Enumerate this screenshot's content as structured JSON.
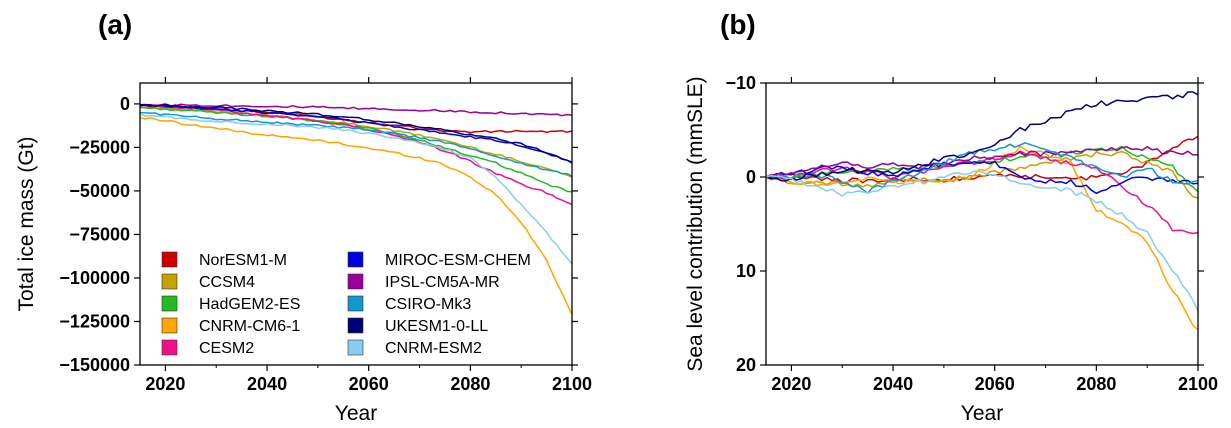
{
  "chart_data": [
    {
      "type": "line",
      "panel_label": "(a)",
      "xlabel": "Year",
      "ylabel": "Total ice mass (Gt)",
      "xlim": [
        2015,
        2100
      ],
      "ylim": [
        -150000,
        12000
      ],
      "y_inverted": false,
      "x_ticks": [
        2020,
        2040,
        2060,
        2080,
        2100
      ],
      "x_tick_labels": [
        "2020",
        "2040",
        "2060",
        "2080",
        "2100"
      ],
      "y_ticks": [
        0,
        -25000,
        -50000,
        -75000,
        -100000,
        -125000,
        -150000
      ],
      "y_tick_labels": [
        "0",
        "−25000",
        "−50000",
        "−75000",
        "−100000",
        "−125000",
        "−150000"
      ],
      "grid": false,
      "legend_position": "bottom-left",
      "x": [
        2015,
        2020,
        2025,
        2030,
        2035,
        2040,
        2045,
        2050,
        2055,
        2060,
        2065,
        2070,
        2075,
        2080,
        2085,
        2090,
        2095,
        2100
      ],
      "series": [
        {
          "name": "NorESM1-M",
          "color": "#cc0000",
          "values": [
            -1000,
            -1500,
            -2000,
            -3000,
            -4000,
            -5000,
            -6000,
            -7500,
            -9000,
            -10500,
            -12000,
            -14000,
            -15500,
            -16000,
            -16000,
            -15500,
            -16000,
            -16000
          ]
        },
        {
          "name": "CCSM4",
          "color": "#c8a000",
          "values": [
            -2000,
            -2500,
            -3500,
            -4500,
            -5500,
            -6500,
            -8000,
            -9500,
            -11000,
            -13000,
            -15500,
            -18000,
            -21000,
            -25000,
            -29000,
            -33000,
            -37000,
            -42000
          ]
        },
        {
          "name": "HadGEM2-ES",
          "color": "#22bb22",
          "values": [
            -2000,
            -3000,
            -4000,
            -5000,
            -6000,
            -7000,
            -8500,
            -10000,
            -12000,
            -14000,
            -17000,
            -21000,
            -25000,
            -30000,
            -34000,
            -40000,
            -46000,
            -51000
          ]
        },
        {
          "name": "CNRM-CM6-1",
          "color": "#ffa500",
          "values": [
            -8000,
            -9500,
            -12000,
            -14000,
            -16000,
            -18000,
            -19500,
            -21000,
            -23000,
            -25500,
            -28000,
            -31000,
            -35000,
            -42000,
            -52000,
            -68000,
            -90000,
            -121000
          ]
        },
        {
          "name": "CESM2",
          "color": "#ee1188",
          "values": [
            -500,
            -1500,
            -2500,
            -3500,
            -5000,
            -6500,
            -8000,
            -10000,
            -12000,
            -15000,
            -18000,
            -22000,
            -27000,
            -33000,
            -40000,
            -46000,
            -51000,
            -58000
          ]
        },
        {
          "name": "MIROC-ESM-CHEM",
          "color": "#0000dd",
          "values": [
            -1000,
            -1500,
            -2000,
            -3000,
            -4000,
            -5000,
            -6000,
            -7500,
            -9000,
            -11000,
            -13000,
            -15000,
            -17000,
            -19000,
            -21000,
            -24000,
            -28000,
            -33000
          ]
        },
        {
          "name": "IPSL-CM5A-MR",
          "color": "#990099",
          "values": [
            -500,
            -500,
            -700,
            -900,
            -1100,
            -1300,
            -1600,
            -2000,
            -2400,
            -2800,
            -3200,
            -3600,
            -4000,
            -4500,
            -5000,
            -5500,
            -6000,
            -6500
          ]
        },
        {
          "name": "CSIRO-Mk3",
          "color": "#1199cc",
          "values": [
            -5000,
            -6000,
            -7500,
            -8500,
            -9500,
            -10500,
            -11500,
            -12500,
            -13500,
            -15000,
            -17000,
            -19500,
            -22000,
            -26000,
            -30000,
            -34000,
            -38000,
            -41000
          ]
        },
        {
          "name": "UKESM1-0-LL",
          "color": "#000077",
          "values": [
            -500,
            -1000,
            -1500,
            -2000,
            -3000,
            -4000,
            -5000,
            -6000,
            -7500,
            -9000,
            -11000,
            -13000,
            -15000,
            -18000,
            -20000,
            -23000,
            -28000,
            -34000
          ]
        },
        {
          "name": "CNRM-ESM2",
          "color": "#88ccee",
          "values": [
            -6000,
            -7500,
            -9000,
            -10000,
            -11000,
            -11500,
            -12500,
            -13500,
            -15000,
            -17000,
            -19500,
            -22500,
            -26000,
            -31000,
            -42000,
            -58000,
            -74000,
            -92000
          ]
        }
      ]
    },
    {
      "type": "line",
      "panel_label": "(b)",
      "xlabel": "Year",
      "ylabel": "Sea level contribution (mmSLE)",
      "xlim": [
        2015,
        2100
      ],
      "ylim": [
        20,
        -10
      ],
      "y_inverted": true,
      "x_ticks": [
        2020,
        2040,
        2060,
        2080,
        2100
      ],
      "x_tick_labels": [
        "2020",
        "2040",
        "2060",
        "2080",
        "2100"
      ],
      "y_ticks": [
        -10,
        0,
        10,
        20
      ],
      "y_tick_labels": [
        "−10",
        "0",
        "10",
        "20"
      ],
      "grid": false,
      "x": [
        2015,
        2020,
        2025,
        2030,
        2035,
        2040,
        2045,
        2050,
        2055,
        2060,
        2065,
        2070,
        2075,
        2080,
        2085,
        2090,
        2095,
        2100
      ],
      "series": [
        {
          "name": "NorESM1-M",
          "color": "#cc0000",
          "values": [
            0,
            -0.2,
            0.2,
            0.3,
            0.5,
            0.2,
            0.2,
            0.3,
            0.0,
            -0.3,
            -0.2,
            0.1,
            0.2,
            0.0,
            -0.5,
            -1.5,
            -3.0,
            -4.5
          ]
        },
        {
          "name": "CCSM4",
          "color": "#c8a000",
          "values": [
            0,
            0.5,
            0.5,
            0.8,
            1.0,
            0.5,
            0.3,
            0.2,
            0.0,
            -0.5,
            -1.0,
            -1.5,
            -2.0,
            -2.5,
            -2.5,
            -1.5,
            -0.5,
            2.5
          ]
        },
        {
          "name": "HadGEM2-ES",
          "color": "#22bb22",
          "values": [
            0,
            0.0,
            -0.3,
            -0.5,
            -0.7,
            -0.8,
            -1.0,
            -1.2,
            -1.5,
            -1.8,
            -2.0,
            -2.3,
            -2.5,
            -2.8,
            -3.0,
            -2.0,
            -1.0,
            1.5
          ]
        },
        {
          "name": "CNRM-CM6-1",
          "color": "#ffa500",
          "values": [
            0,
            0.5,
            0.8,
            0.5,
            0.0,
            0.5,
            0.5,
            0.5,
            0.0,
            -1.5,
            -3.0,
            -2.5,
            -1.5,
            3.5,
            5.0,
            7.0,
            12.0,
            16.5
          ]
        },
        {
          "name": "CESM2",
          "color": "#ee1188",
          "values": [
            0,
            0.0,
            -0.5,
            -1.0,
            -0.5,
            0.0,
            -0.5,
            -1.0,
            -1.5,
            -2.0,
            -2.5,
            -2.0,
            -1.5,
            -1.0,
            1.0,
            3.0,
            5.5,
            6.0
          ]
        },
        {
          "name": "MIROC-ESM-CHEM",
          "color": "#0000dd",
          "values": [
            0,
            -0.3,
            -0.8,
            -1.0,
            -0.5,
            -0.2,
            -0.8,
            -1.5,
            -1.5,
            -1.5,
            0.0,
            0.5,
            0.5,
            1.5,
            0.5,
            0.0,
            0.5,
            0.5
          ]
        },
        {
          "name": "IPSL-CM5A-MR",
          "color": "#990099",
          "values": [
            0,
            -0.5,
            -1.0,
            -1.5,
            -1.0,
            -1.5,
            -1.0,
            -1.5,
            -2.0,
            -2.0,
            -2.5,
            -2.5,
            -2.5,
            -3.0,
            -3.0,
            -3.0,
            -2.5,
            -2.5
          ]
        },
        {
          "name": "CSIRO-Mk3",
          "color": "#1199cc",
          "values": [
            0,
            0.0,
            -0.3,
            0.5,
            1.5,
            0.5,
            -0.5,
            -1.5,
            -2.5,
            -3.0,
            -3.5,
            -3.0,
            -2.0,
            -1.0,
            0.0,
            -1.0,
            0.5,
            0.5
          ]
        },
        {
          "name": "UKESM1-0-LL",
          "color": "#000077",
          "values": [
            0,
            0.2,
            -0.3,
            -0.5,
            -0.8,
            -0.5,
            -1.2,
            -2.0,
            -2.5,
            -3.5,
            -5.0,
            -6.0,
            -7.0,
            -7.8,
            -8.0,
            -8.5,
            -8.5,
            -9.0
          ]
        },
        {
          "name": "CNRM-ESM2",
          "color": "#88ccee",
          "values": [
            0,
            0.3,
            1.0,
            1.8,
            1.5,
            1.0,
            0.5,
            0.0,
            -0.5,
            -0.3,
            0.5,
            1.0,
            1.5,
            2.5,
            4.0,
            6.0,
            10.0,
            14.0
          ]
        }
      ]
    }
  ]
}
